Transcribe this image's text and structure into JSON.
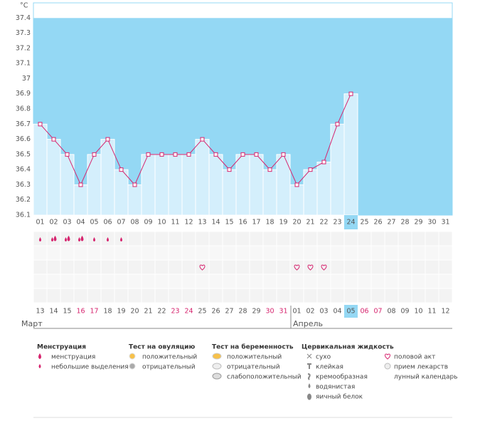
{
  "chart_data": {
    "type": "line",
    "y_label": "°C",
    "categories": [
      "01",
      "02",
      "03",
      "04",
      "05",
      "06",
      "07",
      "08",
      "09",
      "10",
      "11",
      "12",
      "13",
      "14",
      "15",
      "16",
      "17",
      "18",
      "19",
      "20",
      "21",
      "22",
      "23",
      "24",
      "25",
      "26",
      "27",
      "28",
      "29",
      "30",
      "31"
    ],
    "values": [
      36.7,
      36.6,
      36.5,
      36.3,
      36.5,
      36.6,
      36.4,
      36.3,
      36.5,
      36.5,
      36.5,
      36.5,
      36.6,
      36.5,
      36.4,
      36.5,
      36.5,
      36.4,
      36.5,
      36.3,
      36.4,
      36.45,
      36.7,
      36.9,
      null,
      null,
      null,
      null,
      null,
      null,
      null
    ],
    "ylim": [
      36.1,
      37.5
    ],
    "yticks": [
      36.1,
      36.2,
      36.3,
      36.4,
      36.5,
      36.6,
      36.7,
      36.8,
      36.9,
      37,
      37.1,
      37.2,
      37.3,
      37.4
    ],
    "grid": false,
    "color": "#d6246e",
    "bar_color": "#d4effc",
    "background": "#94d8f4",
    "highlight_index": 23,
    "dates": [
      {
        "label": "13"
      },
      {
        "label": "14"
      },
      {
        "label": "15"
      },
      {
        "label": "16",
        "color": "#d6246e"
      },
      {
        "label": "17",
        "color": "#d6246e"
      },
      {
        "label": "18"
      },
      {
        "label": "19"
      },
      {
        "label": "20"
      },
      {
        "label": "21"
      },
      {
        "label": "22"
      },
      {
        "label": "23",
        "color": "#d6246e"
      },
      {
        "label": "24",
        "color": "#d6246e"
      },
      {
        "label": "25"
      },
      {
        "label": "26"
      },
      {
        "label": "27"
      },
      {
        "label": "28"
      },
      {
        "label": "29"
      },
      {
        "label": "30",
        "color": "#d6246e"
      },
      {
        "label": "31",
        "color": "#d6246e"
      },
      {
        "label": "01"
      },
      {
        "label": "02"
      },
      {
        "label": "03"
      },
      {
        "label": "04"
      },
      {
        "label": "05"
      },
      {
        "label": "06",
        "color": "#d6246e"
      },
      {
        "label": "07",
        "color": "#d6246e"
      },
      {
        "label": "08"
      },
      {
        "label": "09"
      },
      {
        "label": "10"
      },
      {
        "label": "11"
      },
      {
        "label": "12"
      }
    ],
    "months": [
      "Март",
      "Апрель"
    ]
  },
  "legend": [
    {
      "title": "Менструация",
      "items": [
        "менструация",
        "небольшие выделения"
      ]
    },
    {
      "title": "Тест на овуляцию",
      "items": [
        "положительный",
        "отрицательный"
      ]
    },
    {
      "title": "Тест на беременность",
      "items": [
        "положительный",
        "отрицательный",
        "слабоположительный"
      ]
    },
    {
      "title": "Цервикальная жидкость",
      "items": [
        "сухо",
        "клейкая",
        "кремообразная",
        "водянистая",
        "яичный белок"
      ]
    },
    {
      "title": "",
      "items": [
        "половой акт",
        "прием лекарств",
        "лунный календарь"
      ]
    }
  ]
}
